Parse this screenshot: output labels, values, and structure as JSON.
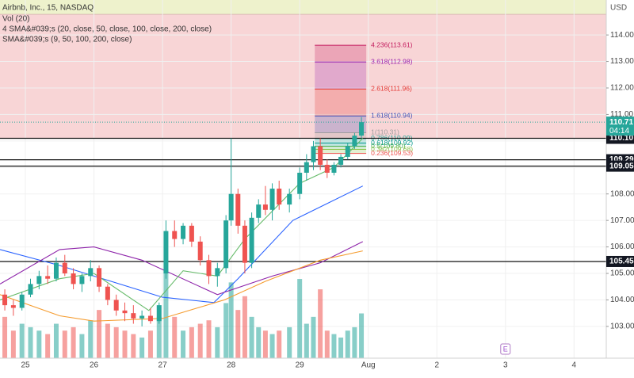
{
  "chart_data": {
    "type": "candlestick",
    "title": "Airbnb, Inc., 15, NASDAQ",
    "legend": [
      "Vol (20)",
      "4 SMA&#039;s (20, close, 50, close, 100, close, 200, close)",
      "SMA&#039;s (9, 50, 100, 200, close)"
    ],
    "currency": "USD",
    "ylim": [
      101.8,
      115.32
    ],
    "yticks": [
      {
        "value": 103,
        "label": "103.00"
      },
      {
        "value": 104,
        "label": "104.00"
      },
      {
        "value": 105,
        "label": "105.00"
      },
      {
        "value": 106,
        "label": "106.00"
      },
      {
        "value": 107,
        "label": "107.00"
      },
      {
        "value": 108,
        "label": "108.00"
      },
      {
        "value": 109,
        "label": "109.00"
      },
      {
        "value": 110,
        "label": "110.00"
      },
      {
        "value": 111,
        "label": "111.00"
      },
      {
        "value": 112,
        "label": "112.00"
      },
      {
        "value": 113,
        "label": "113.00"
      },
      {
        "value": 114,
        "label": "114.00"
      }
    ],
    "xlim": [
      -0.37,
      8.47
    ],
    "xticks": [
      {
        "value": 0,
        "label": "25"
      },
      {
        "value": 1,
        "label": "26"
      },
      {
        "value": 2,
        "label": "27"
      },
      {
        "value": 3,
        "label": "28"
      },
      {
        "value": 4,
        "label": "29"
      },
      {
        "value": 5,
        "label": "Aug"
      },
      {
        "value": 6,
        "label": "2"
      },
      {
        "value": 7,
        "label": "3"
      },
      {
        "value": 8,
        "label": "4"
      }
    ],
    "up_color": "#26a69a",
    "down_color": "#ef5350",
    "candles": {
      "x": [
        -0.3,
        -0.175,
        -0.05,
        0.075,
        0.2,
        0.325,
        0.45,
        0.575,
        0.7,
        0.825,
        0.95,
        1.075,
        1.2,
        1.325,
        1.45,
        1.575,
        1.7,
        1.825,
        1.95,
        2.05,
        2.175,
        2.3,
        2.425,
        2.55,
        2.675,
        2.8,
        2.925,
        3.0,
        3.1,
        3.2,
        3.3,
        3.4,
        3.5,
        3.6,
        3.7,
        3.85,
        4.0,
        4.1,
        4.2,
        4.3,
        4.4,
        4.5,
        4.6,
        4.7,
        4.8,
        4.9
      ],
      "open": [
        104.2,
        103.8,
        103.7,
        104.2,
        104.6,
        104.9,
        104.8,
        105.4,
        105.0,
        104.6,
        104.9,
        105.2,
        104.5,
        104.0,
        103.6,
        103.5,
        103.3,
        103.4,
        103.2,
        105.0,
        106.6,
        106.3,
        106.8,
        106.2,
        105.5,
        104.9,
        105.2,
        107.0,
        108.0,
        106.8,
        105.4,
        107.1,
        107.6,
        107.4,
        108.2,
        107.6,
        108.0,
        108.8,
        109.2,
        109.8,
        109.1,
        108.8,
        109.1,
        109.4,
        109.8,
        110.2
      ],
      "high": [
        104.4,
        104.0,
        104.3,
        104.8,
        105.1,
        105.3,
        105.6,
        105.7,
        105.2,
        105.0,
        105.5,
        105.3,
        104.6,
        104.2,
        103.9,
        103.8,
        103.6,
        103.7,
        103.9,
        107.0,
        107.0,
        106.9,
        106.9,
        106.4,
        105.7,
        105.4,
        107.2,
        110.1,
        108.2,
        107.0,
        107.3,
        107.8,
        108.3,
        108.4,
        108.5,
        108.2,
        109.0,
        109.5,
        110.0,
        110.1,
        109.3,
        109.2,
        109.5,
        109.9,
        110.3,
        110.9
      ],
      "low": [
        103.6,
        103.4,
        103.6,
        104.1,
        104.4,
        104.6,
        104.7,
        104.9,
        104.4,
        104.3,
        104.7,
        104.3,
        103.8,
        103.4,
        103.2,
        103.1,
        103.0,
        103.1,
        103.1,
        104.8,
        106.0,
        106.1,
        106.0,
        105.3,
        104.6,
        104.5,
        105.0,
        106.8,
        106.5,
        105.0,
        105.2,
        106.9,
        107.2,
        107.0,
        107.4,
        107.3,
        107.8,
        108.5,
        108.9,
        108.9,
        108.6,
        108.7,
        109.0,
        109.3,
        109.7,
        110.1
      ],
      "close": [
        103.8,
        103.7,
        104.2,
        104.6,
        104.9,
        104.8,
        105.4,
        105.0,
        104.6,
        104.9,
        105.2,
        104.5,
        104.0,
        103.6,
        103.5,
        103.3,
        103.4,
        103.2,
        103.8,
        106.6,
        106.3,
        106.8,
        106.2,
        105.5,
        104.9,
        105.2,
        107.0,
        108.0,
        106.8,
        105.4,
        107.1,
        107.6,
        107.4,
        108.2,
        107.6,
        108.0,
        108.8,
        109.2,
        109.8,
        109.1,
        108.8,
        109.1,
        109.4,
        109.8,
        110.2,
        110.71
      ],
      "volume": [
        60,
        40,
        50,
        45,
        40,
        35,
        50,
        40,
        45,
        35,
        55,
        70,
        50,
        45,
        40,
        35,
        30,
        40,
        60,
        130,
        60,
        40,
        45,
        50,
        55,
        45,
        80,
        110,
        70,
        90,
        60,
        45,
        40,
        35,
        40,
        45,
        115,
        50,
        60,
        100,
        40,
        35,
        30,
        40,
        45,
        65
      ]
    },
    "volume_ylim": [
      0,
      520
    ],
    "sma_series": [
      {
        "color": "#2962ff",
        "x": [
          -0.37,
          0.5,
          1.0,
          2.0,
          2.75,
          3.1,
          3.9,
          4.92
        ],
        "values": [
          105.9,
          105.3,
          104.9,
          104.1,
          103.9,
          104.8,
          107.0,
          108.3
        ]
      },
      {
        "color": "#8e24aa",
        "x": [
          -0.37,
          0.5,
          1.0,
          1.7,
          2.8,
          3.6,
          4.3,
          4.92
        ],
        "values": [
          104.6,
          105.9,
          106.0,
          105.5,
          104.2,
          104.9,
          105.4,
          106.2
        ]
      },
      {
        "color": "#f59c2f",
        "x": [
          -0.37,
          0.5,
          1.0,
          2.0,
          2.9,
          3.5,
          4.3,
          4.92
        ],
        "values": [
          104.2,
          103.4,
          103.2,
          103.3,
          104.0,
          104.7,
          105.5,
          105.85
        ]
      },
      {
        "color": "#66bb6a",
        "x": [
          -0.37,
          0.5,
          1.0,
          1.8,
          2.3,
          2.8,
          3.2,
          4.0,
          4.5,
          4.92
        ],
        "values": [
          104.0,
          104.8,
          105.0,
          103.6,
          105.1,
          104.9,
          106.3,
          108.4,
          109.0,
          110.1
        ]
      }
    ],
    "zones": [
      {
        "from": 110.1,
        "to": 115.32,
        "color": "#f8d5d6"
      },
      {
        "from": 114.78,
        "to": 115.32,
        "color": "#eef2cc"
      }
    ],
    "fib": {
      "x": [
        4.22,
        4.97
      ],
      "levels": [
        {
          "value": 113.61,
          "label": "4.236(113.61)",
          "color": "#c2185b"
        },
        {
          "value": 112.98,
          "label": "3.618(112.98)",
          "color": "#9c27b0"
        },
        {
          "value": 111.96,
          "label": "2.618(111.96)",
          "color": "#e53935"
        },
        {
          "value": 110.94,
          "label": "1.618(110.94)",
          "color": "#3f51b5"
        },
        {
          "value": 110.31,
          "label": "1(110.31)",
          "color": "#9e9e9e"
        },
        {
          "value": 110.09,
          "label": "0.786(110.09)",
          "color": "#26a69a"
        },
        {
          "value": 109.92,
          "label": "0.618(109.92)",
          "color": "#009688"
        },
        {
          "value": 109.8,
          "label": "0.5(109.80)",
          "color": "#4caf50"
        },
        {
          "value": 109.68,
          "label": "0.382(109.68)",
          "color": "#8bc34a"
        },
        {
          "value": 109.53,
          "label": "0.236(109.53)",
          "color": "#ef5350"
        }
      ]
    },
    "price_lines": [
      {
        "value": 110.1,
        "label": "110.10"
      },
      {
        "value": 109.29,
        "label": "109.29"
      },
      {
        "value": 109.05,
        "label": "109.05"
      },
      {
        "value": 105.45,
        "label": "105.45"
      }
    ],
    "last_price": {
      "value": 110.71,
      "label": "110.71",
      "countdown": "04:14"
    },
    "event": {
      "x": 7.0,
      "label": "E"
    }
  }
}
